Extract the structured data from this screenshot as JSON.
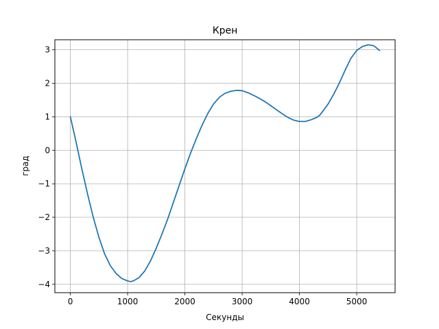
{
  "chart_data": {
    "type": "line",
    "title": "Крен",
    "xlabel": "Секунды",
    "ylabel": "град",
    "xlim": [
      -270,
      5670
    ],
    "ylim": [
      -4.25,
      3.3
    ],
    "grid": true,
    "x_ticks": [
      {
        "value": 0,
        "label": "0"
      },
      {
        "value": 1000,
        "label": "1000"
      },
      {
        "value": 2000,
        "label": "2000"
      },
      {
        "value": 3000,
        "label": "3000"
      },
      {
        "value": 4000,
        "label": "4000"
      },
      {
        "value": 5000,
        "label": "5000"
      }
    ],
    "y_ticks": [
      {
        "value": -4,
        "label": "−4"
      },
      {
        "value": -3,
        "label": "−3"
      },
      {
        "value": -2,
        "label": "−2"
      },
      {
        "value": -1,
        "label": "−1"
      },
      {
        "value": 0,
        "label": "0"
      },
      {
        "value": 1,
        "label": "1"
      },
      {
        "value": 2,
        "label": "2"
      },
      {
        "value": 3,
        "label": "3"
      }
    ],
    "series": [
      {
        "color": "#1f77b4",
        "x": [
          0,
          100,
          200,
          300,
          400,
          500,
          600,
          700,
          800,
          900,
          1000,
          1050,
          1100,
          1200,
          1300,
          1400,
          1500,
          1600,
          1700,
          1800,
          1900,
          2000,
          2100,
          2200,
          2300,
          2400,
          2500,
          2600,
          2700,
          2800,
          2900,
          3000,
          3100,
          3200,
          3300,
          3400,
          3500,
          3600,
          3700,
          3800,
          3900,
          4000,
          4100,
          4200,
          4300,
          4350,
          4400,
          4500,
          4600,
          4700,
          4800,
          4900,
          5000,
          5100,
          5200,
          5300,
          5400
        ],
        "y": [
          1.0,
          0.25,
          -0.55,
          -1.3,
          -2.0,
          -2.6,
          -3.1,
          -3.45,
          -3.68,
          -3.83,
          -3.9,
          -3.92,
          -3.9,
          -3.8,
          -3.6,
          -3.3,
          -2.92,
          -2.5,
          -2.05,
          -1.55,
          -1.05,
          -0.55,
          -0.08,
          0.35,
          0.75,
          1.1,
          1.38,
          1.58,
          1.7,
          1.76,
          1.79,
          1.78,
          1.72,
          1.64,
          1.55,
          1.45,
          1.33,
          1.21,
          1.09,
          0.98,
          0.9,
          0.86,
          0.86,
          0.91,
          0.98,
          1.04,
          1.15,
          1.38,
          1.68,
          2.02,
          2.4,
          2.75,
          2.98,
          3.1,
          3.15,
          3.12,
          2.98
        ]
      }
    ]
  }
}
